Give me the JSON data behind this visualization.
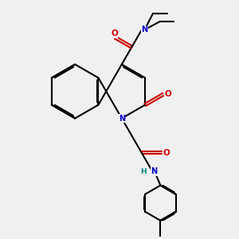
{
  "bg_color": "#f0f0f0",
  "bond_color": "#000000",
  "N_color": "#0000cc",
  "O_color": "#cc0000",
  "NH_color": "#008080",
  "lw": 1.5,
  "dbo": 0.06,
  "xlim": [
    0,
    10
  ],
  "ylim": [
    0,
    10
  ]
}
